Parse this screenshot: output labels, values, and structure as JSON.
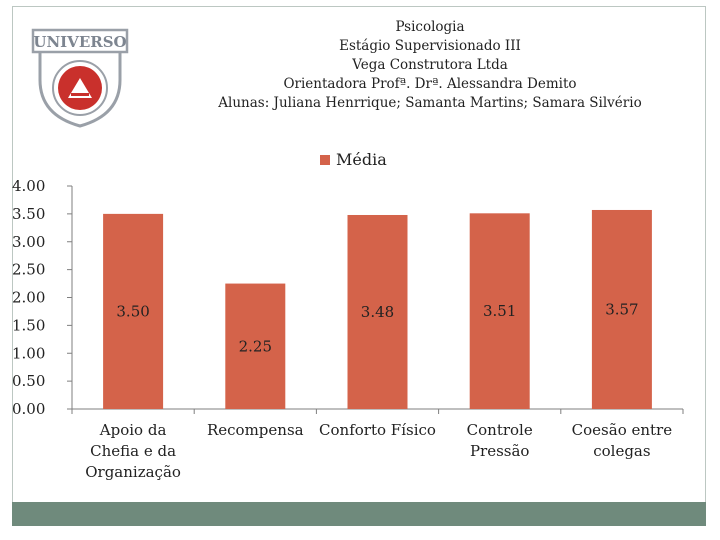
{
  "header": {
    "lines": [
      "Psicologia",
      "Estágio Supervisionado III",
      "Vega Construtora Ltda",
      "Orientadora Profª. Drª. Alessandra Demito",
      "Alunas: Juliana Henrrique; Samanta Martins; Samara Silvério"
    ]
  },
  "logo": {
    "text": "UNIVERSO"
  },
  "colors": {
    "bar": "#d4634a",
    "frame": "#bcc7c2",
    "band": "#6f8a7c",
    "logo": "#9aa0a8"
  },
  "chart_data": {
    "type": "bar",
    "categories": [
      [
        "Apoio da",
        "Chefia e da",
        "Organização"
      ],
      [
        "Recompensa"
      ],
      [
        "Conforto Físico"
      ],
      [
        "Controle",
        "Pressão"
      ],
      [
        "Coesão entre",
        "colegas"
      ]
    ],
    "series": [
      {
        "name": "Média",
        "values": [
          3.5,
          2.25,
          3.48,
          3.51,
          3.57
        ]
      }
    ],
    "value_labels": [
      "3.50",
      "2.25",
      "3.48",
      "3.51",
      "3.57"
    ],
    "yticks": [
      "0.00",
      "0.50",
      "1.00",
      "1.50",
      "2.00",
      "2.50",
      "3.00",
      "3.50",
      "4.00"
    ],
    "ylim": [
      0,
      4
    ],
    "legend": "top-center"
  }
}
